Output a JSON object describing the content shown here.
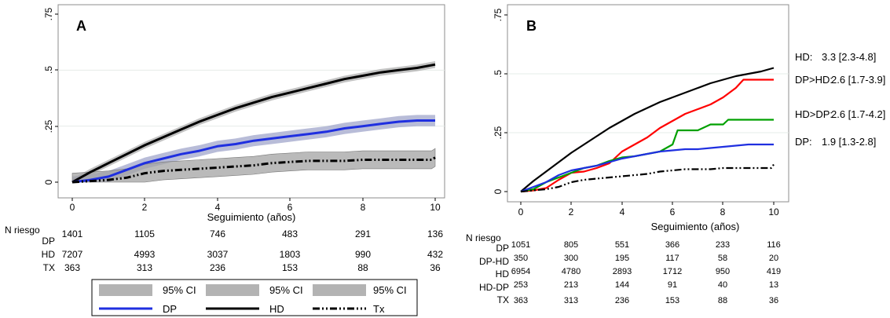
{
  "panels": [
    {
      "letter": "A",
      "xlabel": "Seguimiento (años)",
      "y_ticks": [
        "0",
        ".25",
        ".5",
        ".75"
      ],
      "x_ticks": [
        "0",
        "2",
        "4",
        "6",
        "8",
        "10"
      ],
      "risk_title": "N riesgo",
      "risk_table": [
        {
          "label": "DP",
          "values": [
            "1401",
            "1105",
            "746",
            "483",
            "291",
            "136"
          ]
        },
        {
          "label": "HD",
          "values": [
            "7207",
            "4993",
            "3037",
            "1803",
            "990",
            "432"
          ]
        },
        {
          "label": "TX",
          "values": [
            "363",
            "313",
            "236",
            "153",
            "88",
            "36"
          ]
        }
      ],
      "legend": {
        "ci_label": "95% CI",
        "lines": [
          "DP",
          "HD",
          "Tx"
        ]
      }
    },
    {
      "letter": "B",
      "xlabel": "Seguimiento (años)",
      "y_ticks": [
        "0",
        ".25",
        ".5",
        ".75"
      ],
      "x_ticks": [
        "0",
        "2",
        "4",
        "6",
        "8",
        "10"
      ],
      "risk_title": "N riesgo",
      "risk_table": [
        {
          "label": "DP",
          "values": [
            "1051",
            "805",
            "551",
            "366",
            "233",
            "116"
          ]
        },
        {
          "label": "DP-HD",
          "values": [
            "350",
            "300",
            "195",
            "117",
            "58",
            "20"
          ]
        },
        {
          "label": "HD",
          "values": [
            "6954",
            "4780",
            "2893",
            "1712",
            "950",
            "419"
          ]
        },
        {
          "label": "HD-DP",
          "values": [
            "253",
            "213",
            "144",
            "91",
            "40",
            "13"
          ]
        },
        {
          "label": "TX",
          "values": [
            "363",
            "313",
            "236",
            "153",
            "88",
            "36"
          ]
        }
      ],
      "annotations": [
        {
          "name": "HD:",
          "value": "3.3 [2.3-4.8]"
        },
        {
          "name": "DP>HD:",
          "value": "2.6 [1.7-3.9]"
        },
        {
          "name": "HD>DP:",
          "value": "2.6 [1.7-4.2]"
        },
        {
          "name": "DP:",
          "value": "1.9 [1.3-2.8]"
        }
      ]
    }
  ],
  "chart_data": [
    {
      "type": "line",
      "panel": "A",
      "xlabel": "Seguimiento (años)",
      "ylabel": "",
      "xlim": [
        0,
        10
      ],
      "ylim": [
        0,
        0.75
      ],
      "grid": "horizontal",
      "series": [
        {
          "name": "HD",
          "color": "#000000",
          "style": "solid-thick",
          "ci": true,
          "x": [
            0,
            0.5,
            1,
            1.5,
            2,
            2.5,
            3,
            3.5,
            4,
            4.5,
            5,
            5.5,
            6,
            6.5,
            7,
            7.5,
            8,
            8.5,
            9,
            9.5,
            10
          ],
          "y": [
            0,
            0.045,
            0.085,
            0.125,
            0.165,
            0.2,
            0.235,
            0.27,
            0.3,
            0.33,
            0.355,
            0.38,
            0.4,
            0.42,
            0.44,
            0.46,
            0.475,
            0.49,
            0.5,
            0.51,
            0.525
          ],
          "ci_width": 0.015
        },
        {
          "name": "DP",
          "color": "#1f2fe0",
          "style": "solid-thick",
          "ci": true,
          "x": [
            0,
            0.5,
            1,
            1.5,
            2,
            2.5,
            3,
            3.5,
            4,
            4.5,
            5,
            5.5,
            6,
            6.5,
            7,
            7.5,
            8,
            8.5,
            9,
            9.5,
            10
          ],
          "y": [
            0,
            0.01,
            0.025,
            0.055,
            0.085,
            0.105,
            0.125,
            0.14,
            0.16,
            0.17,
            0.185,
            0.195,
            0.205,
            0.215,
            0.225,
            0.24,
            0.25,
            0.26,
            0.27,
            0.275,
            0.275
          ],
          "ci_width": 0.025
        },
        {
          "name": "Tx",
          "color": "#000000",
          "style": "dash-dot",
          "ci": true,
          "x": [
            0,
            0.5,
            1,
            1.5,
            2,
            2.5,
            3,
            3.5,
            4,
            4.5,
            5,
            5.5,
            6,
            6.5,
            7,
            7.5,
            8,
            8.5,
            9,
            9.5,
            9.9,
            10
          ],
          "y": [
            0,
            0.005,
            0.01,
            0.02,
            0.04,
            0.05,
            0.055,
            0.06,
            0.065,
            0.07,
            0.075,
            0.085,
            0.09,
            0.095,
            0.095,
            0.095,
            0.1,
            0.1,
            0.1,
            0.1,
            0.1,
            0.11
          ],
          "ci_width": 0.04
        }
      ]
    },
    {
      "type": "line",
      "panel": "B",
      "xlabel": "Seguimiento (años)",
      "ylabel": "",
      "xlim": [
        0,
        10
      ],
      "ylim": [
        0,
        0.75
      ],
      "grid": "horizontal",
      "series": [
        {
          "name": "HD",
          "color": "#000000",
          "style": "solid",
          "x": [
            0,
            0.5,
            1,
            1.5,
            2,
            2.5,
            3,
            3.5,
            4,
            4.5,
            5,
            5.5,
            6,
            6.5,
            7,
            7.5,
            8,
            8.5,
            9,
            9.5,
            10
          ],
          "y": [
            0,
            0.045,
            0.085,
            0.125,
            0.165,
            0.2,
            0.235,
            0.27,
            0.3,
            0.33,
            0.355,
            0.38,
            0.4,
            0.42,
            0.44,
            0.46,
            0.475,
            0.49,
            0.5,
            0.51,
            0.525
          ]
        },
        {
          "name": "DP>HD",
          "color": "#ff0000",
          "style": "solid",
          "x": [
            0,
            0.5,
            1,
            1.5,
            2,
            2.5,
            3,
            3.5,
            4,
            4.5,
            5,
            5.5,
            6,
            6.5,
            7,
            7.5,
            8,
            8.5,
            8.8,
            9,
            9.5,
            10
          ],
          "y": [
            0,
            0.005,
            0.015,
            0.05,
            0.08,
            0.085,
            0.1,
            0.12,
            0.17,
            0.2,
            0.23,
            0.27,
            0.3,
            0.33,
            0.35,
            0.37,
            0.4,
            0.44,
            0.475,
            0.475,
            0.475,
            0.475
          ]
        },
        {
          "name": "HD>DP",
          "color": "#00a000",
          "style": "solid",
          "x": [
            0,
            0.5,
            1,
            1.5,
            2,
            2.5,
            3,
            3.5,
            4,
            4.5,
            5,
            5.5,
            6,
            6.2,
            6.5,
            7,
            7.5,
            8,
            8.2,
            9,
            9.5,
            10
          ],
          "y": [
            0,
            0.01,
            0.04,
            0.06,
            0.08,
            0.1,
            0.11,
            0.13,
            0.145,
            0.15,
            0.16,
            0.17,
            0.2,
            0.26,
            0.26,
            0.26,
            0.285,
            0.285,
            0.305,
            0.305,
            0.305,
            0.305
          ]
        },
        {
          "name": "DP",
          "color": "#1f2fe0",
          "style": "solid",
          "x": [
            0,
            0.5,
            1,
            1.5,
            2,
            2.5,
            3,
            3.5,
            4,
            4.5,
            5,
            5.5,
            6,
            6.5,
            7,
            7.5,
            8,
            8.5,
            9,
            9.5,
            10
          ],
          "y": [
            0,
            0.02,
            0.04,
            0.07,
            0.09,
            0.1,
            0.11,
            0.125,
            0.14,
            0.15,
            0.16,
            0.17,
            0.175,
            0.18,
            0.18,
            0.185,
            0.19,
            0.195,
            0.2,
            0.2,
            0.2
          ]
        },
        {
          "name": "Tx",
          "color": "#000000",
          "style": "dash-dot",
          "x": [
            0,
            0.5,
            1,
            1.5,
            2,
            2.5,
            3,
            3.5,
            4,
            4.5,
            5,
            5.5,
            6,
            6.5,
            7,
            7.5,
            8,
            8.5,
            9,
            9.5,
            9.9,
            10
          ],
          "y": [
            0,
            0.005,
            0.01,
            0.02,
            0.04,
            0.05,
            0.055,
            0.06,
            0.065,
            0.07,
            0.075,
            0.085,
            0.09,
            0.095,
            0.095,
            0.095,
            0.1,
            0.1,
            0.1,
            0.1,
            0.1,
            0.115
          ]
        }
      ]
    }
  ]
}
